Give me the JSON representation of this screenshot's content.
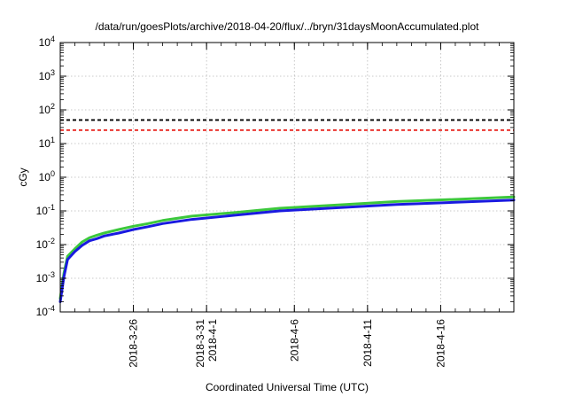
{
  "chart_data": {
    "type": "line",
    "title": "/data/run/goesPlots/archive/2018-04-20/flux/../bryn/31daysMoonAccumulated.plot",
    "xlabel": "Coordinated Universal Time (UTC)",
    "ylabel": "cGy",
    "yscale": "log",
    "ylim": [
      0.0001,
      10000
    ],
    "xlim": [
      "2018-03-21",
      "2018-04-21"
    ],
    "grid": true,
    "y_ticks": [
      {
        "base": "10",
        "exp": "-4"
      },
      {
        "base": "10",
        "exp": "-3"
      },
      {
        "base": "10",
        "exp": "-2"
      },
      {
        "base": "10",
        "exp": "-1"
      },
      {
        "base": "10",
        "exp": "0"
      },
      {
        "base": "10",
        "exp": "1"
      },
      {
        "base": "10",
        "exp": "2"
      },
      {
        "base": "10",
        "exp": "3"
      },
      {
        "base": "10",
        "exp": "4"
      }
    ],
    "x_ticks": [
      {
        "date": "2018-03-26",
        "lines": [
          "2018-3-26"
        ]
      },
      {
        "date": "2018-03-31",
        "lines": [
          "2018-3-31",
          "2018-4-1"
        ]
      },
      {
        "date": "2018-04-06",
        "lines": [
          "2018-4-6"
        ]
      },
      {
        "date": "2018-04-11",
        "lines": [
          "2018-4-11"
        ]
      },
      {
        "date": "2018-04-16",
        "lines": [
          "2018-4-16"
        ]
      }
    ],
    "threshold_lines": [
      {
        "y": 50,
        "color": "#000000",
        "style": "dashed"
      },
      {
        "y": 25,
        "color": "#e8201a",
        "style": "dashed"
      }
    ],
    "series": [
      {
        "color": "#3cc83c",
        "x": [
          "2018-03-21",
          "2018-03-21T06:00",
          "2018-03-21T12:00",
          "2018-03-22",
          "2018-03-22T12:00",
          "2018-03-23",
          "2018-03-23T12:00",
          "2018-03-24",
          "2018-03-25",
          "2018-03-26",
          "2018-03-27",
          "2018-03-28",
          "2018-03-30",
          "2018-04-02",
          "2018-04-05",
          "2018-04-09",
          "2018-04-13",
          "2018-04-17",
          "2018-04-21"
        ],
        "values": [
          0.00025,
          0.0014,
          0.0045,
          0.0075,
          0.012,
          0.016,
          0.019,
          0.022,
          0.028,
          0.035,
          0.042,
          0.052,
          0.07,
          0.09,
          0.12,
          0.15,
          0.19,
          0.22,
          0.26
        ]
      },
      {
        "color": "#1a1ae0",
        "x": [
          "2018-03-21",
          "2018-03-21T06:00",
          "2018-03-21T12:00",
          "2018-03-22",
          "2018-03-22T12:00",
          "2018-03-23",
          "2018-03-23T12:00",
          "2018-03-24",
          "2018-03-25",
          "2018-03-26",
          "2018-03-27",
          "2018-03-28",
          "2018-03-30",
          "2018-04-02",
          "2018-04-05",
          "2018-04-09",
          "2018-04-13",
          "2018-04-17",
          "2018-04-21"
        ],
        "values": [
          0.0002,
          0.0011,
          0.0036,
          0.0062,
          0.0095,
          0.013,
          0.015,
          0.018,
          0.022,
          0.028,
          0.034,
          0.042,
          0.056,
          0.075,
          0.1,
          0.125,
          0.155,
          0.18,
          0.21
        ]
      }
    ]
  }
}
